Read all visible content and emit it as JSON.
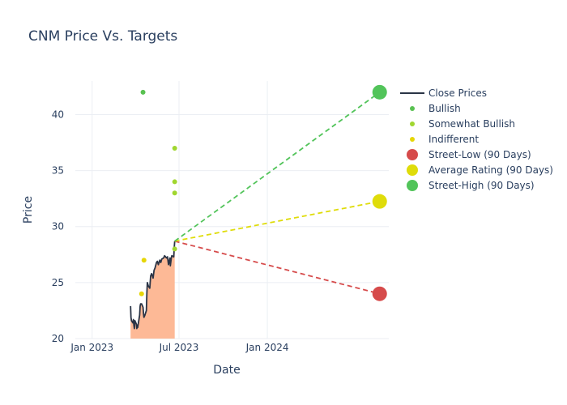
{
  "chart_data": {
    "type": "line",
    "title": "CNM Price Vs. Targets",
    "xlabel": "Date",
    "ylabel": "Price",
    "xlim": [
      "2022-11-27",
      "2024-09-10"
    ],
    "ylim": [
      20,
      43
    ],
    "x_ticks": [
      {
        "date": "2023-01-01",
        "label": "Jan 2023"
      },
      {
        "date": "2023-07-01",
        "label": "Jul 2023"
      },
      {
        "date": "2024-01-01",
        "label": "Jan 2024"
      }
    ],
    "y_ticks": [
      20,
      25,
      30,
      35,
      40
    ],
    "grid": true,
    "legend_position": "right",
    "close_prices": {
      "name": "Close Prices",
      "color": "#2a3446",
      "fill_color": "#fdb996",
      "points": [
        [
          "2023-03-22",
          22.9
        ],
        [
          "2023-03-23",
          21.9
        ],
        [
          "2023-03-24",
          21.6
        ],
        [
          "2023-03-27",
          21.4
        ],
        [
          "2023-03-28",
          21.7
        ],
        [
          "2023-03-29",
          21.2
        ],
        [
          "2023-03-30",
          20.9
        ],
        [
          "2023-03-31",
          21.6
        ],
        [
          "2023-04-03",
          21.3
        ],
        [
          "2023-04-04",
          20.9
        ],
        [
          "2023-04-05",
          21.2
        ],
        [
          "2023-04-06",
          21.0
        ],
        [
          "2023-04-10",
          22.1
        ],
        [
          "2023-04-11",
          22.9
        ],
        [
          "2023-04-12",
          23.1
        ],
        [
          "2023-04-14",
          23.1
        ],
        [
          "2023-04-17",
          22.8
        ],
        [
          "2023-04-18",
          22.2
        ],
        [
          "2023-04-19",
          21.9
        ],
        [
          "2023-04-21",
          22.1
        ],
        [
          "2023-04-24",
          22.5
        ],
        [
          "2023-04-25",
          24.0
        ],
        [
          "2023-04-26",
          25.0
        ],
        [
          "2023-04-28",
          24.7
        ],
        [
          "2023-05-01",
          24.5
        ],
        [
          "2023-05-03",
          25.6
        ],
        [
          "2023-05-05",
          25.8
        ],
        [
          "2023-05-08",
          25.4
        ],
        [
          "2023-05-10",
          26.1
        ],
        [
          "2023-05-12",
          26.3
        ],
        [
          "2023-05-15",
          26.8
        ],
        [
          "2023-05-17",
          26.9
        ],
        [
          "2023-05-19",
          26.6
        ],
        [
          "2023-05-22",
          27.0
        ],
        [
          "2023-05-24",
          26.8
        ],
        [
          "2023-05-26",
          27.1
        ],
        [
          "2023-05-30",
          27.2
        ],
        [
          "2023-06-01",
          27.4
        ],
        [
          "2023-06-05",
          27.2
        ],
        [
          "2023-06-07",
          27.3
        ],
        [
          "2023-06-09",
          26.6
        ],
        [
          "2023-06-12",
          27.2
        ],
        [
          "2023-06-13",
          26.5
        ],
        [
          "2023-06-15",
          27.2
        ],
        [
          "2023-06-16",
          27.4
        ],
        [
          "2023-06-20",
          27.3
        ],
        [
          "2023-06-21",
          28.1
        ],
        [
          "2023-06-22",
          28.7
        ]
      ]
    },
    "analyst_ratings": [
      {
        "name": "Bullish",
        "color": "#59c151",
        "points": [
          [
            "2023-04-17",
            42
          ]
        ]
      },
      {
        "name": "Somewhat Bullish",
        "color": "#a0d62f",
        "points": [
          [
            "2023-06-22",
            37
          ],
          [
            "2023-06-22",
            34
          ],
          [
            "2023-06-22",
            33
          ],
          [
            "2023-06-22",
            28
          ]
        ]
      },
      {
        "name": "Indifferent",
        "color": "#e6d607",
        "points": [
          [
            "2023-04-14",
            24
          ],
          [
            "2023-04-19",
            27
          ]
        ]
      }
    ],
    "targets": [
      {
        "name": "Street-Low (90 Days)",
        "color": "#d64b4b",
        "value": 24,
        "date": "2024-08-22"
      },
      {
        "name": "Average Rating (90 Days)",
        "color": "#dfdc0a",
        "value": 32.25,
        "date": "2024-08-22"
      },
      {
        "name": "Street-High (90 Days)",
        "color": "#52c45a",
        "value": 42,
        "date": "2024-08-22"
      }
    ],
    "target_line_start": {
      "date": "2023-06-22",
      "value": 28.7
    }
  }
}
